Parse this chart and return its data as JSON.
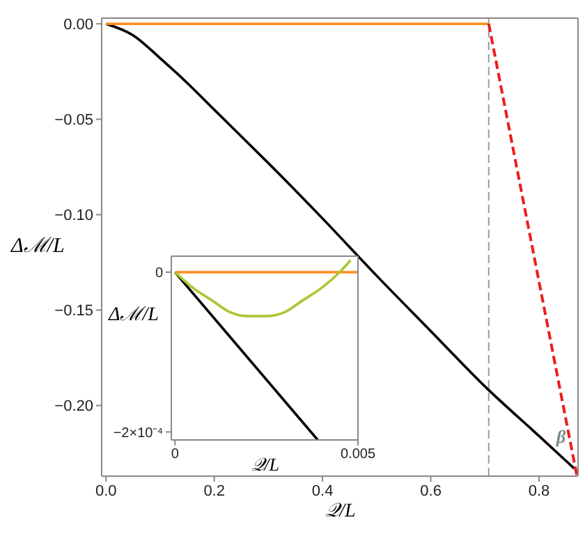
{
  "chart_data": [
    {
      "type": "line",
      "xlabel": "𝒬/L",
      "ylabel": "Δℳ/L",
      "series": [
        {
          "color": "#000000",
          "x": [
            0,
            0.05,
            0.1,
            0.15,
            0.2,
            0.25,
            0.3,
            0.4,
            0.5,
            0.6,
            0.7,
            0.8,
            0.865
          ],
          "values": [
            0,
            -0.006,
            -0.018,
            -0.031,
            -0.045,
            -0.059,
            -0.073,
            -0.102,
            -0.132,
            -0.161,
            -0.19,
            -0.216,
            -0.233
          ]
        },
        {
          "color": "#ff8c1a",
          "x": [
            0,
            0.707
          ],
          "values": [
            0,
            0
          ]
        },
        {
          "color": "#ee1c1c",
          "line_style": "dashed",
          "x": [
            0.707,
            0.87
          ],
          "values": [
            0,
            -0.237
          ]
        }
      ],
      "xlim": [
        -0.008,
        0.872
      ],
      "ylim": [
        -0.237,
        0.003
      ],
      "xticks": [
        {
          "value": 0,
          "label": "0.0"
        },
        0.2,
        0.4,
        0.6,
        0.8
      ],
      "yticks": [
        {
          "value": 0,
          "label": "0.00"
        },
        {
          "value": -0.05,
          "label": "−0.05"
        },
        {
          "value": -0.1,
          "label": "−0.10"
        },
        {
          "value": -0.15,
          "label": "−0.15"
        },
        {
          "value": -0.2,
          "label": "−0.20"
        }
      ],
      "ref_lines": [
        {
          "axis": "x",
          "value": 0.707,
          "color": "#9a9a9a",
          "line_style": "dashed"
        }
      ],
      "annotations": [
        {
          "text": "β",
          "x": 0.845,
          "y": -0.218
        }
      ]
    },
    {
      "type": "line",
      "xlabel": "𝒬/L",
      "ylabel": "Δℳ/L",
      "series": [
        {
          "color": "#000000",
          "x": [
            0,
            0.0039
          ],
          "values": [
            0,
            -0.00021
          ]
        },
        {
          "color": "#ff8c1a",
          "x": [
            0,
            0.005
          ],
          "values": [
            0,
            0
          ]
        },
        {
          "color": "#a8c832",
          "x": [
            0,
            0.0005,
            0.001,
            0.0015,
            0.002,
            0.0025,
            0.003,
            0.0035,
            0.004,
            0.0045,
            0.0048
          ],
          "values": [
            0,
            -2e-05,
            -3.5e-05,
            -5e-05,
            -5.5e-05,
            -5.5e-05,
            -5e-05,
            -3.5e-05,
            -2e-05,
            0,
            1.5e-05
          ]
        }
      ],
      "xlim": [
        -0.0001,
        0.005
      ],
      "ylim": [
        -0.00021,
        2e-05
      ],
      "xticks": [
        0,
        0.005
      ],
      "yticks": [
        0,
        {
          "value": -0.0002,
          "label": "−2×10⁻⁴"
        }
      ]
    }
  ]
}
